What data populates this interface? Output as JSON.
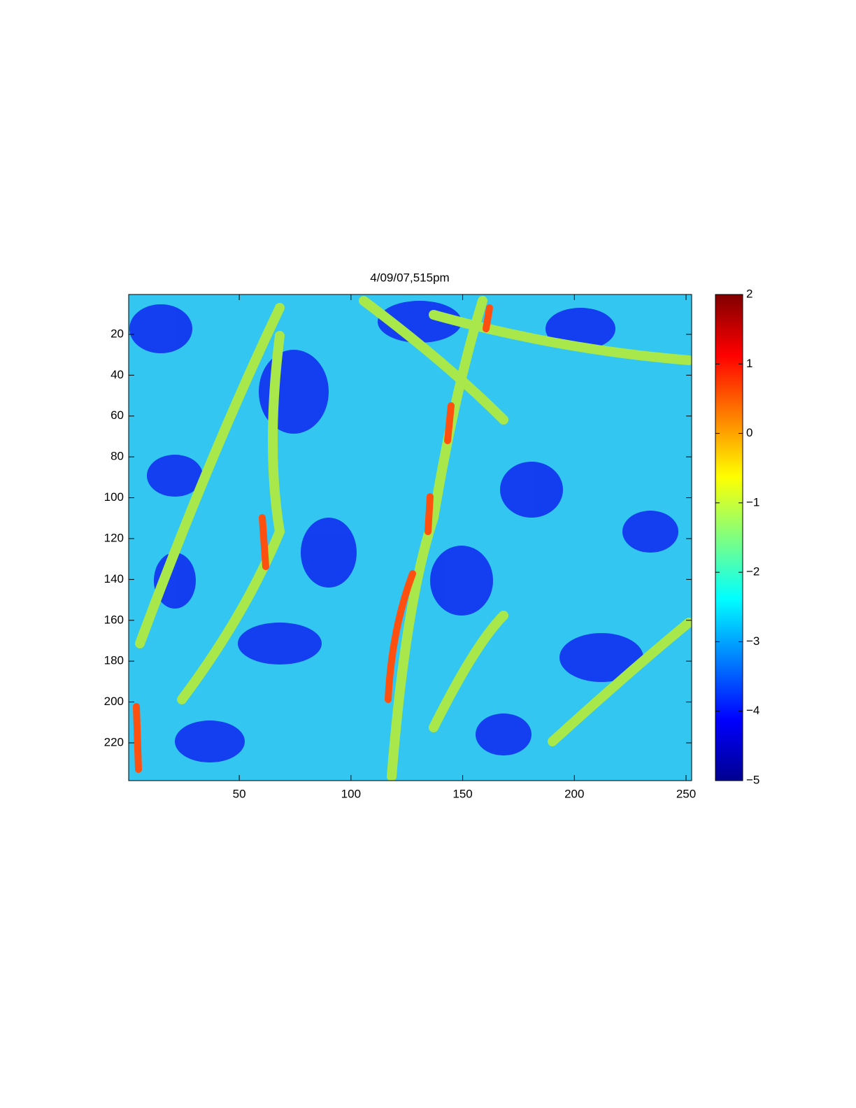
{
  "chart_data": {
    "type": "heatmap",
    "title": "4/09/07,515pm",
    "colormap": "jet",
    "xlim": [
      0.5,
      252.5
    ],
    "xticks": [
      50,
      100,
      150,
      200,
      250
    ],
    "ylim": [
      0.5,
      238.5
    ],
    "yticks": [
      20,
      40,
      60,
      80,
      100,
      120,
      140,
      160,
      180,
      200,
      220
    ],
    "y_reversed": true,
    "colorbar": {
      "clim": [
        -5,
        2
      ],
      "ticks": [
        {
          "value": -5,
          "label": "−5"
        },
        {
          "value": -4,
          "label": "−4"
        },
        {
          "value": -3,
          "label": "−3"
        },
        {
          "value": -2,
          "label": "−2"
        },
        {
          "value": -1,
          "label": "−1"
        },
        0,
        1,
        2
      ]
    }
  }
}
